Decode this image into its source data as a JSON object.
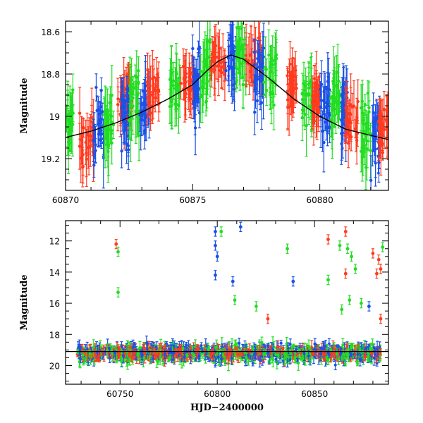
{
  "chart_data": [
    {
      "type": "scatter",
      "panel": "top",
      "xlabel": "",
      "ylabel": "Magnitude",
      "xlim": [
        60870,
        60882.7
      ],
      "ylim": [
        19.35,
        18.55
      ],
      "y_inverted": true,
      "xticks": [
        60870,
        60875,
        60880
      ],
      "yticks": [
        18.6,
        18.8,
        19,
        19.2
      ],
      "ytick_labels": [
        "18.6",
        "18.8",
        "19",
        "19.2"
      ],
      "series": [
        {
          "color": "#22dd22"
        },
        {
          "color": "#1a50e6"
        },
        {
          "color": "#ff3b1f"
        },
        {
          "color": "#000000"
        }
      ],
      "model_curve": {
        "x": [
          60870,
          60871,
          60872,
          60873,
          60874,
          60875,
          60875.6,
          60876,
          60876.5,
          60877,
          60878,
          60879,
          60880,
          60881,
          60882,
          60882.7
        ],
        "y": [
          19.1,
          19.07,
          19.03,
          18.98,
          18.92,
          18.85,
          18.78,
          18.74,
          18.71,
          18.73,
          18.82,
          18.92,
          19.0,
          19.06,
          19.09,
          19.11
        ]
      },
      "observation_groups": [
        {
          "x": [
            60870.0,
            60870.35
          ],
          "color": "#22dd22",
          "y": 19.0,
          "spread": 0.22
        },
        {
          "x": [
            60870.5,
            60871.1
          ],
          "color": "#ff3b1f",
          "y": 19.12,
          "spread": 0.18
        },
        {
          "x": [
            60871.1,
            60871.5
          ],
          "color": "#1a50e6",
          "y": 19.05,
          "spread": 0.25
        },
        {
          "x": [
            60871.5,
            60871.9
          ],
          "color": "#22dd22",
          "y": 19.05,
          "spread": 0.22
        },
        {
          "x": [
            60872.05,
            60872.6
          ],
          "color": "#ff3b1f",
          "y": 18.92,
          "spread": 0.15
        },
        {
          "x": [
            60872.2,
            60872.5
          ],
          "color": "#1a50e6",
          "y": 19.0,
          "spread": 0.25
        },
        {
          "x": [
            60872.5,
            60872.9
          ],
          "color": "#22dd22",
          "y": 18.95,
          "spread": 0.22
        },
        {
          "x": [
            60872.9,
            60873.3
          ],
          "color": "#1a50e6",
          "y": 18.95,
          "spread": 0.25
        },
        {
          "x": [
            60873.2,
            60873.7
          ],
          "color": "#ff3b1f",
          "y": 18.88,
          "spread": 0.12
        },
        {
          "x": [
            60874.1,
            60874.5
          ],
          "color": "#22dd22",
          "y": 18.9,
          "spread": 0.22
        },
        {
          "x": [
            60874.5,
            60875.0
          ],
          "color": "#ff3b1f",
          "y": 18.85,
          "spread": 0.12
        },
        {
          "x": [
            60875.0,
            60875.3
          ],
          "color": "#1a50e6",
          "y": 18.85,
          "spread": 0.25
        },
        {
          "x": [
            60875.3,
            60875.7
          ],
          "color": "#22dd22",
          "y": 18.8,
          "spread": 0.22
        },
        {
          "x": [
            60875.7,
            60876.3
          ],
          "color": "#ff3b1f",
          "y": 18.74,
          "spread": 0.12
        },
        {
          "x": [
            60876.3,
            60876.7
          ],
          "color": "#1a50e6",
          "y": 18.75,
          "spread": 0.25
        },
        {
          "x": [
            60876.7,
            60877.1
          ],
          "color": "#22dd22",
          "y": 18.72,
          "spread": 0.22
        },
        {
          "x": [
            60877.1,
            60877.7
          ],
          "color": "#ff3b1f",
          "y": 18.73,
          "spread": 0.12
        },
        {
          "x": [
            60877.4,
            60877.8
          ],
          "color": "#1a50e6",
          "y": 18.8,
          "spread": 0.25
        },
        {
          "x": [
            60877.8,
            60878.3
          ],
          "color": "#22dd22",
          "y": 18.78,
          "spread": 0.22
        },
        {
          "x": [
            60878.7,
            60879.1
          ],
          "color": "#ff3b1f",
          "y": 18.85,
          "spread": 0.15
        },
        {
          "x": [
            60879.3,
            60879.7
          ],
          "color": "#22dd22",
          "y": 18.9,
          "spread": 0.22
        },
        {
          "x": [
            60879.7,
            60880.0
          ],
          "color": "#ff3b1f",
          "y": 18.92,
          "spread": 0.15
        },
        {
          "x": [
            60880.0,
            60880.4
          ],
          "color": "#1a50e6",
          "y": 18.95,
          "spread": 0.25
        },
        {
          "x": [
            60880.4,
            60880.8
          ],
          "color": "#22dd22",
          "y": 18.95,
          "spread": 0.22
        },
        {
          "x": [
            60880.8,
            60881.1
          ],
          "color": "#1a50e6",
          "y": 19.0,
          "spread": 0.25
        },
        {
          "x": [
            60881.0,
            60881.5
          ],
          "color": "#ff3b1f",
          "y": 19.02,
          "spread": 0.15
        },
        {
          "x": [
            60881.6,
            60882.0
          ],
          "color": "#22dd22",
          "y": 19.05,
          "spread": 0.22
        },
        {
          "x": [
            60882.0,
            60882.35
          ],
          "color": "#1a50e6",
          "y": 19.1,
          "spread": 0.25
        },
        {
          "x": [
            60882.3,
            60882.7
          ],
          "color": "#ff3b1f",
          "y": 19.05,
          "spread": 0.15
        }
      ]
    },
    {
      "type": "scatter",
      "panel": "bottom",
      "xlabel": "HJD−2400000",
      "ylabel": "Magnitude",
      "xlim": [
        60722,
        60888
      ],
      "ylim": [
        21.2,
        10.7
      ],
      "y_inverted": true,
      "xticks": [
        60750,
        60800,
        60850
      ],
      "yticks": [
        12,
        14,
        16,
        18,
        20
      ],
      "reference_line_mag": 19.1,
      "series": [
        {
          "color": "#22dd22"
        },
        {
          "color": "#1a50e6"
        },
        {
          "color": "#ff3b1f"
        }
      ],
      "dense_band": {
        "x": [
          60728,
          60884
        ],
        "mag_center": 19.2,
        "mag_spread": 0.9
      },
      "outliers": [
        {
          "x": 60748,
          "y": 12.2,
          "color": "#ff3b1f"
        },
        {
          "x": 60749,
          "y": 12.7,
          "color": "#22dd22"
        },
        {
          "x": 60749,
          "y": 15.3,
          "color": "#22dd22"
        },
        {
          "x": 60799,
          "y": 11.4,
          "color": "#1a50e6"
        },
        {
          "x": 60799,
          "y": 12.3,
          "color": "#1a50e6"
        },
        {
          "x": 60800,
          "y": 13.0,
          "color": "#1a50e6"
        },
        {
          "x": 60799,
          "y": 14.2,
          "color": "#1a50e6"
        },
        {
          "x": 60802,
          "y": 11.4,
          "color": "#22dd22"
        },
        {
          "x": 60812,
          "y": 11.1,
          "color": "#1a50e6"
        },
        {
          "x": 60808,
          "y": 14.6,
          "color": "#1a50e6"
        },
        {
          "x": 60809,
          "y": 15.8,
          "color": "#22dd22"
        },
        {
          "x": 60820,
          "y": 16.2,
          "color": "#22dd22"
        },
        {
          "x": 60826,
          "y": 17.0,
          "color": "#ff3b1f"
        },
        {
          "x": 60836,
          "y": 12.5,
          "color": "#22dd22"
        },
        {
          "x": 60839,
          "y": 14.6,
          "color": "#1a50e6"
        },
        {
          "x": 60857,
          "y": 11.9,
          "color": "#ff3b1f"
        },
        {
          "x": 60857,
          "y": 14.5,
          "color": "#22dd22"
        },
        {
          "x": 60863,
          "y": 12.3,
          "color": "#22dd22"
        },
        {
          "x": 60866,
          "y": 11.4,
          "color": "#ff3b1f"
        },
        {
          "x": 60867,
          "y": 12.5,
          "color": "#22dd22"
        },
        {
          "x": 60869,
          "y": 13.0,
          "color": "#22dd22"
        },
        {
          "x": 60871,
          "y": 13.8,
          "color": "#22dd22"
        },
        {
          "x": 60866,
          "y": 14.1,
          "color": "#ff3b1f"
        },
        {
          "x": 60868,
          "y": 15.8,
          "color": "#22dd22"
        },
        {
          "x": 60864,
          "y": 16.4,
          "color": "#22dd22"
        },
        {
          "x": 60874,
          "y": 16.0,
          "color": "#22dd22"
        },
        {
          "x": 60878,
          "y": 16.2,
          "color": "#1a50e6"
        },
        {
          "x": 60880,
          "y": 12.8,
          "color": "#ff3b1f"
        },
        {
          "x": 60883,
          "y": 13.2,
          "color": "#ff3b1f"
        },
        {
          "x": 60884,
          "y": 13.8,
          "color": "#ff3b1f"
        },
        {
          "x": 60885,
          "y": 12.4,
          "color": "#22dd22"
        },
        {
          "x": 60882,
          "y": 14.1,
          "color": "#ff3b1f"
        },
        {
          "x": 60884,
          "y": 17.0,
          "color": "#ff3b1f"
        }
      ]
    }
  ]
}
